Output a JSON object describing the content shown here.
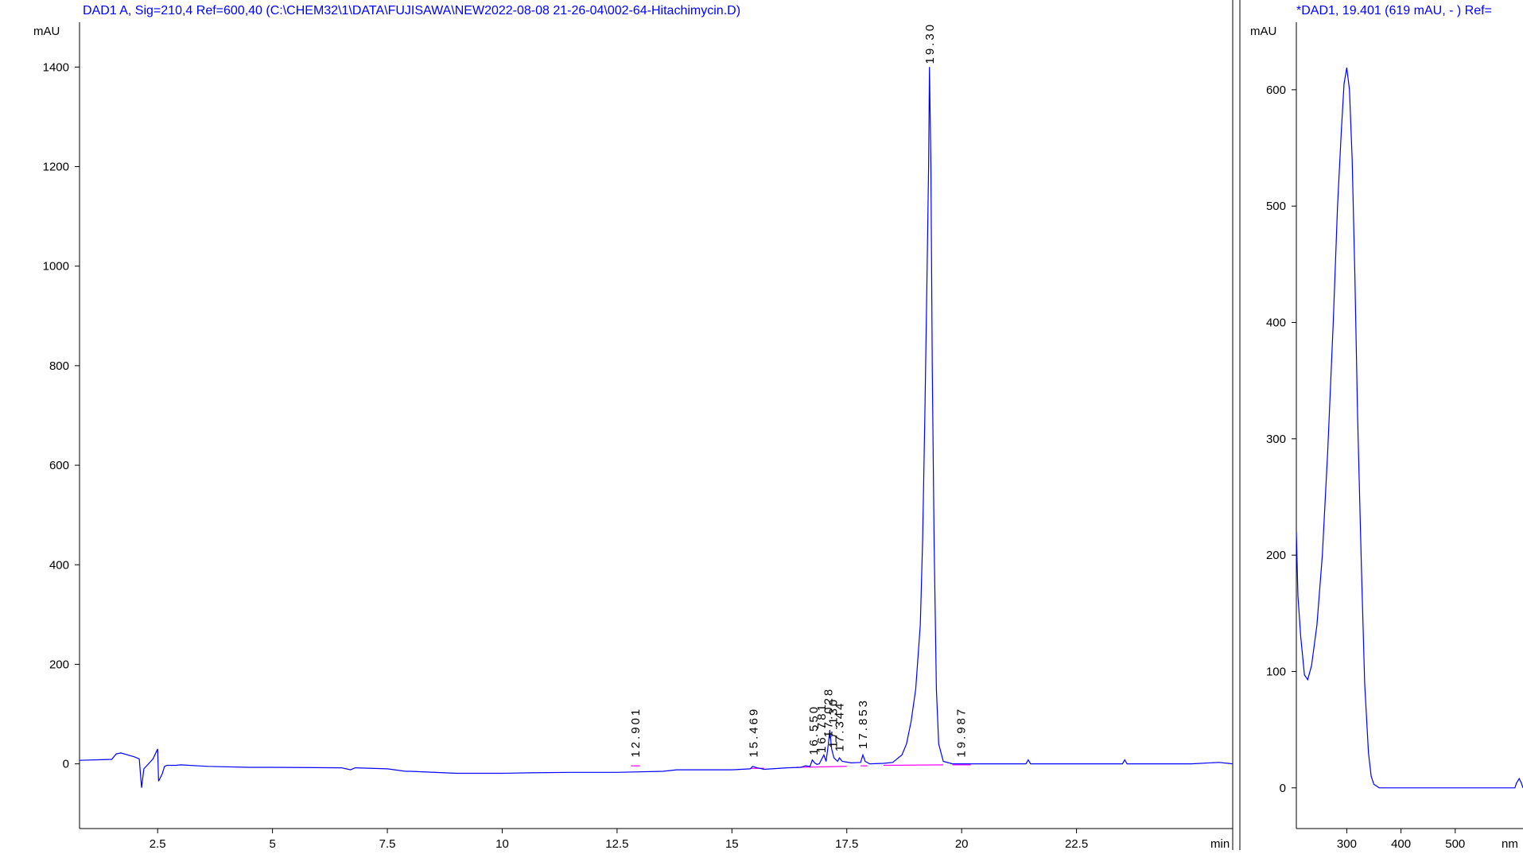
{
  "colors": {
    "trace": "#0000ff",
    "baseline": "#ff00ff",
    "title": "#0000ff",
    "axis": "#000000",
    "background": "#ffffff"
  },
  "chart_data": [
    {
      "type": "line",
      "title": "DAD1 A, Sig=210,4 Ref=600,40 (C:\\CHEM32\\1\\DATA\\FUJISAWA\\NEW2022-08-08 21-26-04\\002-64-Hitachimycin.D)",
      "ylabel": "mAU",
      "xlabel": "min",
      "xlim": [
        0.8,
        25.9
      ],
      "ylim": [
        -130,
        1490
      ],
      "x_ticks": [
        2.5,
        5,
        7.5,
        10,
        12.5,
        15,
        17.5,
        20,
        22.5
      ],
      "x_tick_labels": [
        "2.5",
        "5",
        "7.5",
        "10",
        "12.5",
        "15",
        "17.5",
        "20",
        "22.5"
      ],
      "y_ticks": [
        0,
        200,
        400,
        600,
        800,
        1000,
        1200,
        1400
      ],
      "y_tick_labels": [
        "0",
        "200",
        "400",
        "600",
        "800",
        "1000",
        "1200",
        "1400"
      ],
      "series": [
        {
          "x": [
            0.8,
            1.5,
            1.6,
            1.7,
            2.0,
            2.1,
            2.15,
            2.2,
            2.3,
            2.4,
            2.5,
            2.52,
            2.6,
            2.65,
            2.7,
            2.8,
            2.9,
            3.0,
            3.6,
            4.5,
            5.0,
            6.5,
            6.7,
            6.8,
            7.5,
            7.9,
            8.0,
            9.0,
            10.0,
            10.6,
            11.5,
            12.5,
            13.5,
            13.8,
            15.0,
            15.4,
            15.45,
            15.55,
            15.7,
            16.2,
            16.5,
            16.6,
            16.7,
            16.75,
            16.8,
            16.85,
            16.9,
            17.0,
            17.05,
            17.1,
            17.13,
            17.17,
            17.22,
            17.3,
            17.34,
            17.4,
            17.6,
            17.8,
            17.85,
            17.9,
            18.0,
            18.3,
            18.5,
            18.7,
            18.8,
            18.9,
            19.0,
            19.1,
            19.15,
            19.2,
            19.25,
            19.28,
            19.3,
            19.33,
            19.36,
            19.4,
            19.45,
            19.5,
            19.6,
            19.8,
            20.0,
            21.0,
            21.4,
            21.45,
            21.5,
            23.5,
            23.55,
            23.6,
            25.0,
            25.6,
            25.9
          ],
          "y": [
            7,
            9,
            20,
            22,
            14,
            10,
            -48,
            -10,
            0,
            10,
            30,
            -35,
            -20,
            -5,
            -3,
            -3,
            -3,
            -2,
            -5,
            -7,
            -7,
            -8,
            -12,
            -8,
            -10,
            -15,
            -15,
            -19,
            -19,
            -18,
            -17,
            -17,
            -15,
            -12,
            -12,
            -10,
            -5,
            -8,
            -11,
            -8,
            -7,
            -4,
            -5,
            8,
            2,
            -1,
            0,
            18,
            5,
            40,
            68,
            30,
            12,
            5,
            12,
            5,
            2,
            3,
            18,
            5,
            0,
            1,
            3,
            18,
            40,
            85,
            150,
            280,
            450,
            700,
            1000,
            1200,
            1400,
            1200,
            800,
            450,
            150,
            40,
            5,
            0,
            0,
            0,
            0,
            8,
            0,
            0,
            8,
            0,
            0,
            3,
            0
          ]
        }
      ],
      "baseline_segments": [
        [
          [
            12.8,
            -4
          ],
          [
            13.0,
            -4
          ]
        ],
        [
          [
            15.4,
            -9
          ],
          [
            15.7,
            -9
          ]
        ],
        [
          [
            16.4,
            -7
          ],
          [
            17.5,
            -5
          ]
        ],
        [
          [
            17.8,
            -4
          ],
          [
            17.95,
            -4
          ]
        ],
        [
          [
            18.3,
            -3
          ],
          [
            19.6,
            -2
          ]
        ],
        [
          [
            19.8,
            -2
          ],
          [
            20.2,
            -2
          ]
        ]
      ],
      "peak_labels": [
        {
          "x": 12.901,
          "text": "12.901"
        },
        {
          "x": 15.469,
          "text": "15.469"
        },
        {
          "x": 16.779,
          "text": "16.550"
        },
        {
          "x": 16.95,
          "text": "16.781"
        },
        {
          "x": 17.1,
          "text": "17.028"
        },
        {
          "x": 17.2,
          "text": "17.130"
        },
        {
          "x": 17.344,
          "text": "17.344"
        },
        {
          "x": 17.853,
          "text": "17.853"
        },
        {
          "x": 19.301,
          "text": "19.30"
        },
        {
          "x": 19.987,
          "text": "19.987"
        }
      ]
    },
    {
      "type": "line",
      "title": "*DAD1, 19.401 (619 mAU, - ) Ref=",
      "ylabel": "mAU",
      "xlabel": "nm",
      "xlim": [
        207,
        625
      ],
      "ylim": [
        -35,
        658
      ],
      "x_ticks": [
        300,
        400,
        500
      ],
      "x_tick_labels": [
        "300",
        "400",
        "500"
      ],
      "y_ticks": [
        0,
        100,
        200,
        300,
        400,
        500,
        600
      ],
      "y_tick_labels": [
        "0",
        "100",
        "200",
        "300",
        "400",
        "500",
        "600"
      ],
      "series": [
        {
          "x": [
            207,
            210,
            215,
            222,
            228,
            235,
            245,
            255,
            265,
            275,
            283,
            290,
            295,
            300,
            305,
            310,
            315,
            320,
            327,
            333,
            340,
            345,
            350,
            360,
            400,
            500,
            610,
            613,
            618,
            622,
            625
          ],
          "y": [
            220,
            165,
            130,
            97,
            93,
            105,
            140,
            200,
            290,
            400,
            500,
            565,
            605,
            619,
            600,
            540,
            440,
            320,
            190,
            90,
            30,
            10,
            3,
            0,
            0,
            0,
            0,
            4,
            8,
            4,
            0
          ]
        }
      ]
    }
  ]
}
